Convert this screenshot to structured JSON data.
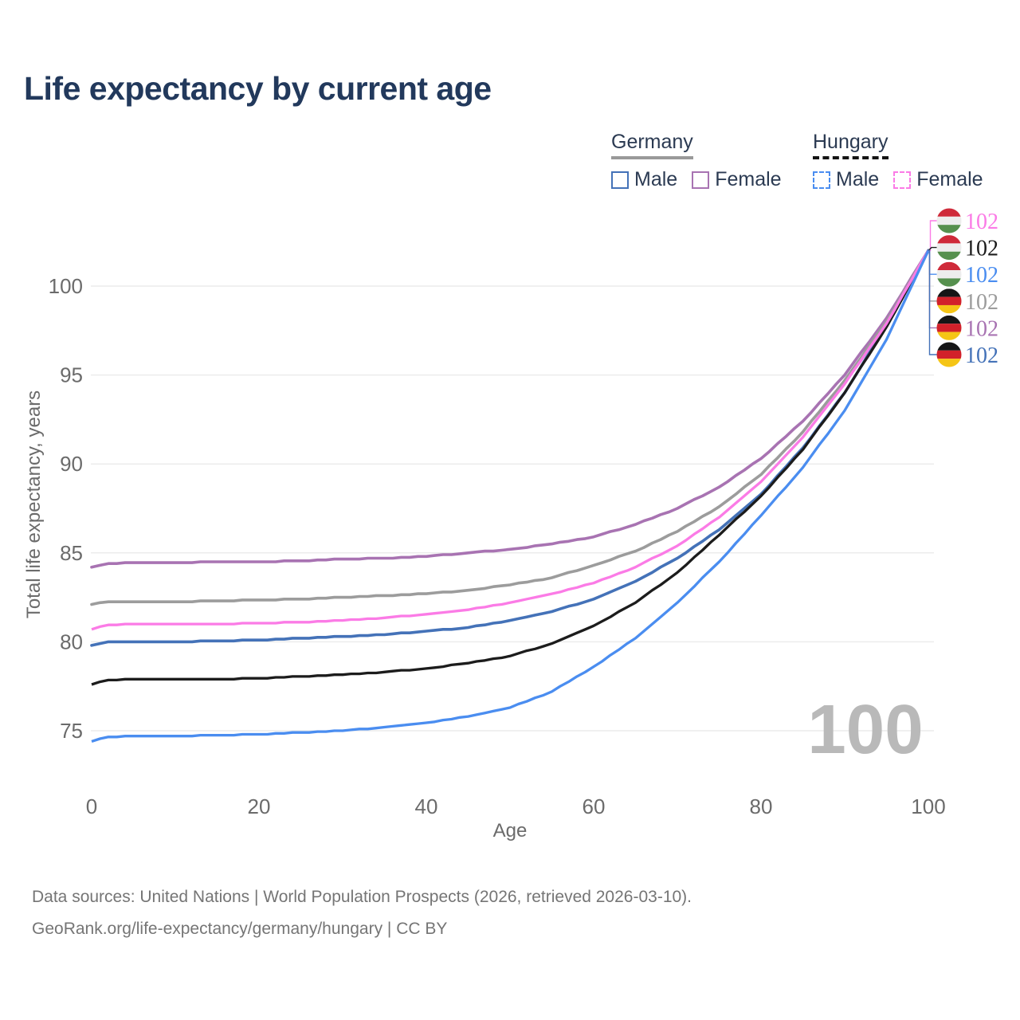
{
  "title": "Life expectancy by current age",
  "watermark": "100",
  "legend": {
    "groups": [
      {
        "label": "Germany",
        "underline_style": "solid",
        "underline_color": "#999999",
        "items": [
          {
            "label": "Male",
            "color": "#4472b8",
            "dashed": false
          },
          {
            "label": "Female",
            "color": "#a873b2",
            "dashed": false
          }
        ]
      },
      {
        "label": "Hungary",
        "underline_style": "dashed",
        "underline_color": "#141414",
        "items": [
          {
            "label": "Male",
            "color": "#4a8df0",
            "dashed": true
          },
          {
            "label": "Female",
            "color": "#fb7be6",
            "dashed": true
          }
        ]
      }
    ]
  },
  "footer": {
    "line1": "Data sources: United Nations | World Population Prospects (2026, retrieved 2026-03-10).",
    "line2": "GeoRank.org/life-expectancy/germany/hungary | CC BY"
  },
  "chart_data": {
    "type": "line",
    "title": "Life expectancy by current age",
    "xlabel": "Age",
    "ylabel": "Total life expectancy, years",
    "xlim": [
      0,
      100
    ],
    "ylim": [
      73,
      104
    ],
    "xticks": [
      0,
      20,
      40,
      60,
      80,
      100
    ],
    "yticks": [
      75,
      80,
      85,
      90,
      95,
      100
    ],
    "grid": "horizontal-only",
    "legend_position": "top-right",
    "x": [
      0,
      2,
      5,
      10,
      15,
      20,
      25,
      30,
      35,
      40,
      45,
      50,
      55,
      60,
      65,
      70,
      75,
      80,
      85,
      90,
      95,
      100
    ],
    "series": [
      {
        "id": "de-female",
        "name": "Germany - Female",
        "country": "Germany",
        "color": "#a873b2",
        "dashed": false,
        "values": [
          84.2,
          84.4,
          84.45,
          84.45,
          84.5,
          84.5,
          84.55,
          84.65,
          84.7,
          84.8,
          85.0,
          85.2,
          85.5,
          85.9,
          86.6,
          87.5,
          88.7,
          90.3,
          92.4,
          95.0,
          98.2,
          102
        ]
      },
      {
        "id": "de-total",
        "name": "Germany - Both sexes",
        "country": "Germany",
        "color": "#9c9c9c",
        "dashed": false,
        "values": [
          82.1,
          82.25,
          82.25,
          82.25,
          82.3,
          82.35,
          82.4,
          82.5,
          82.6,
          82.7,
          82.9,
          83.2,
          83.6,
          84.3,
          85.1,
          86.2,
          87.6,
          89.4,
          91.8,
          94.7,
          98.0,
          102
        ]
      },
      {
        "id": "de-male",
        "name": "Germany - Male",
        "country": "Germany",
        "color": "#4472b8",
        "dashed": false,
        "values": [
          79.8,
          80.0,
          80.0,
          80.0,
          80.05,
          80.1,
          80.2,
          80.3,
          80.4,
          80.6,
          80.8,
          81.2,
          81.7,
          82.4,
          83.4,
          84.7,
          86.3,
          88.3,
          90.9,
          94.0,
          97.8,
          102
        ]
      },
      {
        "id": "hu-total",
        "name": "Hungary - Both sexes",
        "country": "Hungary",
        "color": "#1c1c1c",
        "dashed": true,
        "values": [
          77.6,
          77.85,
          77.9,
          77.9,
          77.9,
          77.95,
          78.05,
          78.15,
          78.3,
          78.5,
          78.8,
          79.2,
          79.9,
          80.9,
          82.2,
          83.9,
          86.0,
          88.2,
          90.8,
          94.0,
          97.7,
          102
        ]
      },
      {
        "id": "hu-female",
        "name": "Hungary - Female",
        "country": "Hungary",
        "color": "#fb7be6",
        "dashed": true,
        "values": [
          80.7,
          80.95,
          81.0,
          81.0,
          81.0,
          81.05,
          81.1,
          81.2,
          81.35,
          81.55,
          81.8,
          82.2,
          82.7,
          83.3,
          84.2,
          85.4,
          87.0,
          89.0,
          91.5,
          94.5,
          97.9,
          102
        ]
      },
      {
        "id": "hu-male",
        "name": "Hungary - Male",
        "country": "Hungary",
        "color": "#4a8df0",
        "dashed": true,
        "values": [
          74.4,
          74.65,
          74.7,
          74.7,
          74.75,
          74.8,
          74.9,
          75.0,
          75.2,
          75.45,
          75.8,
          76.3,
          77.2,
          78.6,
          80.2,
          82.2,
          84.5,
          87.1,
          89.8,
          93.0,
          97.0,
          102
        ]
      }
    ],
    "end_labels": [
      {
        "series": "hu-female",
        "value": "102",
        "flag": "hu",
        "color": "#fb7be6"
      },
      {
        "series": "hu-total",
        "value": "102",
        "flag": "hu",
        "color": "#1c1c1c"
      },
      {
        "series": "hu-male",
        "value": "102",
        "flag": "hu",
        "color": "#4a8df0"
      },
      {
        "series": "de-total",
        "value": "102",
        "flag": "de",
        "color": "#9c9c9c"
      },
      {
        "series": "de-female",
        "value": "102",
        "flag": "de",
        "color": "#a873b2"
      },
      {
        "series": "de-male",
        "value": "102",
        "flag": "de",
        "color": "#4472b8"
      }
    ],
    "flags": {
      "hu": [
        "#cf2a3a",
        "#ededed",
        "#56904e"
      ],
      "de": [
        "#161616",
        "#d2212a",
        "#f5c516"
      ]
    }
  }
}
